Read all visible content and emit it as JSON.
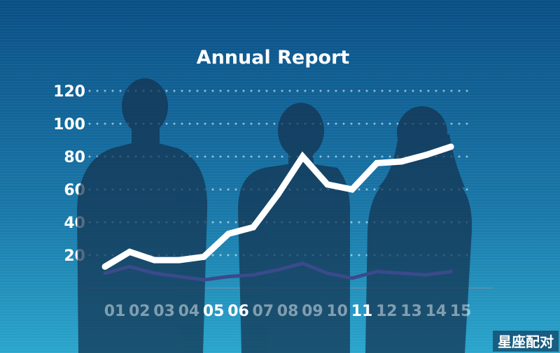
{
  "chart_data": {
    "type": "line",
    "title": "Annual Report",
    "xlabel": "",
    "ylabel": "",
    "categories": [
      "01",
      "02",
      "03",
      "04",
      "05",
      "06",
      "07",
      "08",
      "09",
      "10",
      "11",
      "12",
      "13",
      "14",
      "15"
    ],
    "yticks": [
      "20",
      "40",
      "60",
      "80",
      "100",
      "120"
    ],
    "ylim": [
      0,
      120
    ],
    "grid": true,
    "series": [
      {
        "values": [
          13,
          22,
          17,
          17,
          19,
          33,
          37,
          57,
          80,
          63,
          60,
          76,
          77,
          81,
          86
        ],
        "color": "#ffffff"
      },
      {
        "values": [
          9,
          13,
          9,
          7,
          5,
          7,
          8,
          11,
          15,
          9,
          6,
          10,
          9,
          8,
          10
        ],
        "color": "#3a4a8a"
      }
    ]
  },
  "watermark": "星座配对",
  "colors": {
    "bg_top": "#0a4f86",
    "bg_bottom": "#2aa5cc",
    "tick_text": "#ffffff",
    "silhouette": "#13324f"
  }
}
